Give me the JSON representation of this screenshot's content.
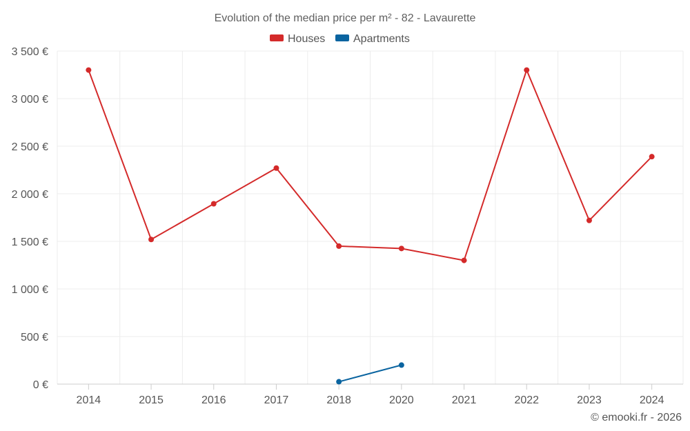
{
  "chart_data": {
    "type": "line",
    "title": "Evolution of the median price per m² - 82 - Lavaurette",
    "categories": [
      "2014",
      "2015",
      "2016",
      "2017",
      "2018",
      "2020",
      "2021",
      "2022",
      "2023",
      "2024"
    ],
    "series": [
      {
        "name": "Houses",
        "color": "#d42a2a",
        "values": [
          3300,
          1520,
          1895,
          2270,
          1450,
          1425,
          1300,
          3300,
          1720,
          2390
        ]
      },
      {
        "name": "Apartments",
        "color": "#0a64a0",
        "values": [
          null,
          null,
          null,
          null,
          25,
          200,
          null,
          null,
          null,
          null
        ]
      }
    ],
    "y_ticks": [
      0,
      500,
      1000,
      1500,
      2000,
      2500,
      3000,
      3500
    ],
    "y_tick_labels": [
      "0 €",
      "500 €",
      "1 000 €",
      "1 500 €",
      "2 000 €",
      "2 500 €",
      "3 000 €",
      "3 500 €"
    ],
    "ylim": [
      0,
      3500
    ],
    "xlabel": "",
    "ylabel": "",
    "grid": true,
    "legend_position": "top-center"
  },
  "credit": "© emooki.fr - 2026"
}
